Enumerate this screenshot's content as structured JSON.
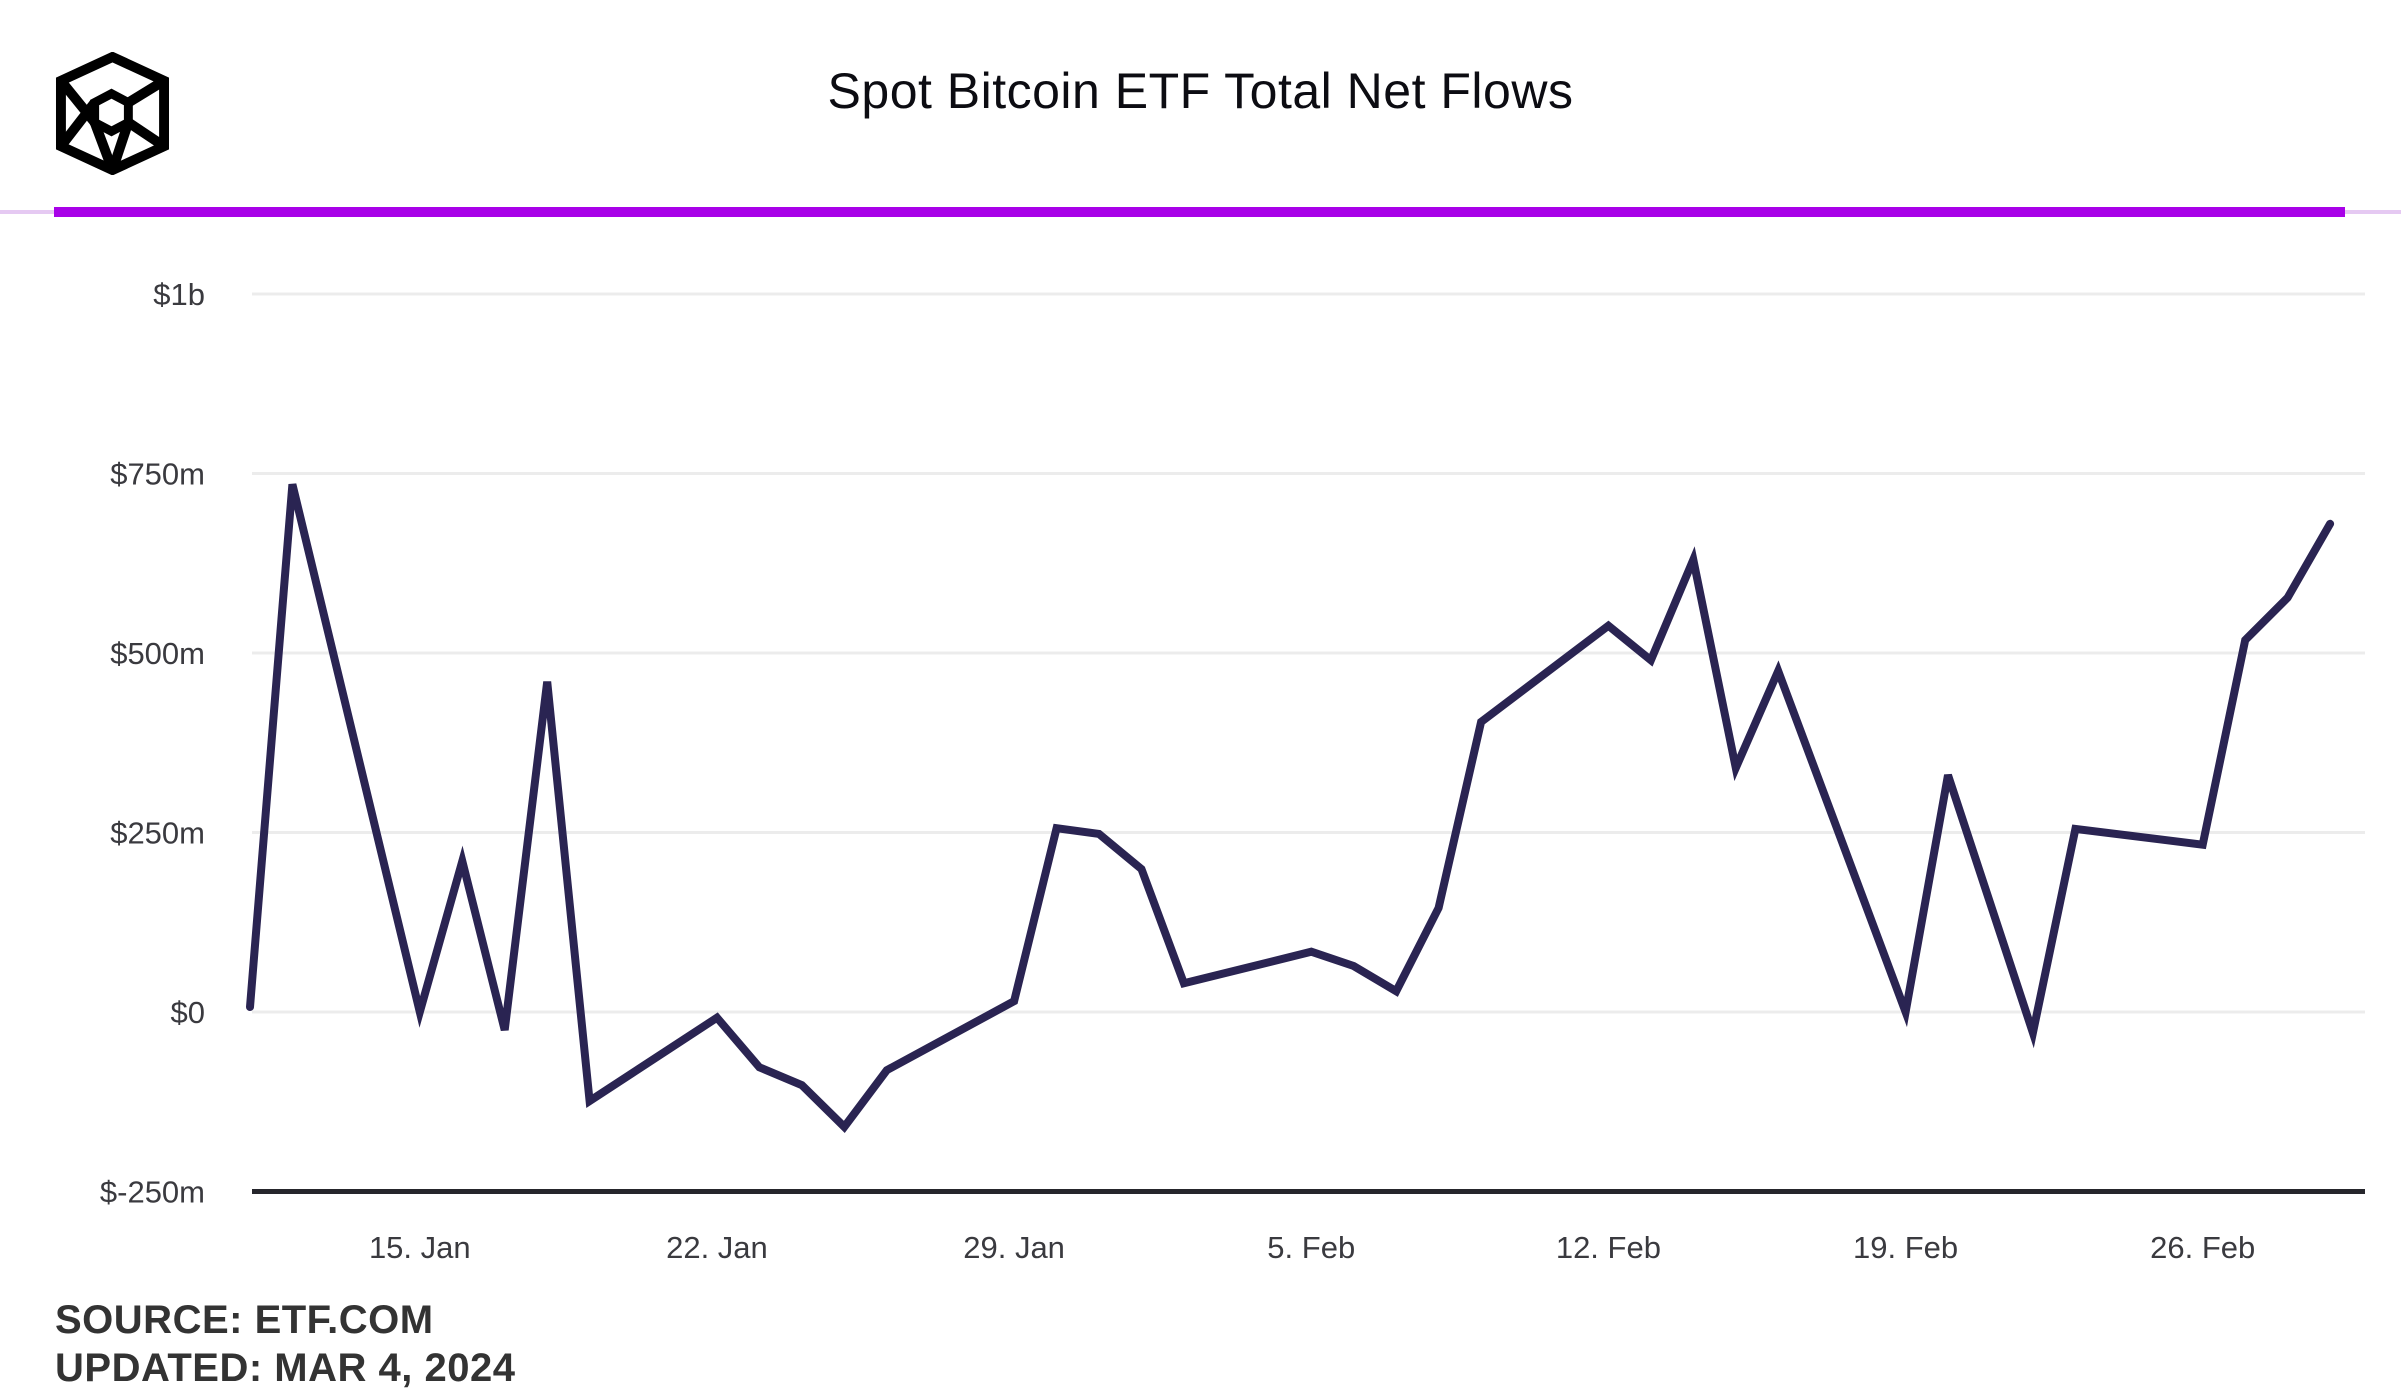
{
  "header": {
    "title": "Spot Bitcoin ETF Total Net Flows",
    "logo": "the-block-cube-logo"
  },
  "footer": {
    "source_line": "SOURCE: ETF.COM",
    "updated_line": "UPDATED: MAR 4, 2024"
  },
  "colors": {
    "divider_accent": "#a801e8",
    "divider_light": "#e5c9f2",
    "line": "#2a2452",
    "gridline": "#ececec",
    "axis_line": "#26262c",
    "tick_text": "#3a3a3f",
    "title_text": "#0c0c12",
    "footer_text": "#333333",
    "background": "#ffffff"
  },
  "chart_data": {
    "type": "line",
    "title": "Spot Bitcoin ETF Total Net Flows",
    "unit": "USD millions",
    "legend": "none",
    "x_axis": {
      "type": "time",
      "start_date": "Jan 11, 2024",
      "end_date": "Mar 1, 2024",
      "ticks": [
        {
          "label": "15. Jan",
          "date": "Jan 15, 2024"
        },
        {
          "label": "22. Jan",
          "date": "Jan 22, 2024"
        },
        {
          "label": "29. Jan",
          "date": "Jan 29, 2024"
        },
        {
          "label": "5. Feb",
          "date": "Feb 5, 2024"
        },
        {
          "label": "12. Feb",
          "date": "Feb 12, 2024"
        },
        {
          "label": "19. Feb",
          "date": "Feb 19, 2024"
        },
        {
          "label": "26. Feb",
          "date": "Feb 26, 2024"
        }
      ]
    },
    "y_axis": {
      "range": [
        -250,
        1000
      ],
      "grid": true,
      "ticks": [
        {
          "label": "$1b",
          "value": 1000
        },
        {
          "label": "$750m",
          "value": 750
        },
        {
          "label": "$500m",
          "value": 500
        },
        {
          "label": "$250m",
          "value": 250
        },
        {
          "label": "$0",
          "value": 0
        },
        {
          "label": "$-250m",
          "value": -250
        }
      ]
    },
    "series": [
      {
        "name": "Total net flows",
        "color": "#2a2452",
        "points": [
          {
            "date": "Jan 11, 2024",
            "value": 7
          },
          {
            "date": "Jan 12, 2024",
            "value": 735
          },
          {
            "date": "Jan 15, 2024",
            "value": 0
          },
          {
            "date": "Jan 16, 2024",
            "value": 210
          },
          {
            "date": "Jan 17, 2024",
            "value": -25
          },
          {
            "date": "Jan 18, 2024",
            "value": 460
          },
          {
            "date": "Jan 19, 2024",
            "value": -124
          },
          {
            "date": "Jan 22, 2024",
            "value": -8
          },
          {
            "date": "Jan 23, 2024",
            "value": -77
          },
          {
            "date": "Jan 24, 2024",
            "value": -102
          },
          {
            "date": "Jan 25, 2024",
            "value": -160
          },
          {
            "date": "Jan 26, 2024",
            "value": -81
          },
          {
            "date": "Jan 29, 2024",
            "value": 15
          },
          {
            "date": "Jan 30, 2024",
            "value": 256
          },
          {
            "date": "Jan 31, 2024",
            "value": 248
          },
          {
            "date": "Feb 1, 2024",
            "value": 199
          },
          {
            "date": "Feb 2, 2024",
            "value": 40
          },
          {
            "date": "Feb 5, 2024",
            "value": 84
          },
          {
            "date": "Feb 6, 2024",
            "value": 64
          },
          {
            "date": "Feb 7, 2024",
            "value": 29
          },
          {
            "date": "Feb 8, 2024",
            "value": 145
          },
          {
            "date": "Feb 9, 2024",
            "value": 404
          },
          {
            "date": "Feb 12, 2024",
            "value": 538
          },
          {
            "date": "Feb 13, 2024",
            "value": 490
          },
          {
            "date": "Feb 14, 2024",
            "value": 630
          },
          {
            "date": "Feb 15, 2024",
            "value": 340
          },
          {
            "date": "Feb 16, 2024",
            "value": 475
          },
          {
            "date": "Feb 19, 2024",
            "value": 0
          },
          {
            "date": "Feb 20, 2024",
            "value": 330
          },
          {
            "date": "Feb 22, 2024",
            "value": -29
          },
          {
            "date": "Feb 23, 2024",
            "value": 255
          },
          {
            "date": "Feb 26, 2024",
            "value": 233
          },
          {
            "date": "Feb 27, 2024",
            "value": 518
          },
          {
            "date": "Feb 28, 2024",
            "value": 577
          },
          {
            "date": "Feb 29, 2024",
            "value": 680
          }
        ]
      }
    ]
  }
}
